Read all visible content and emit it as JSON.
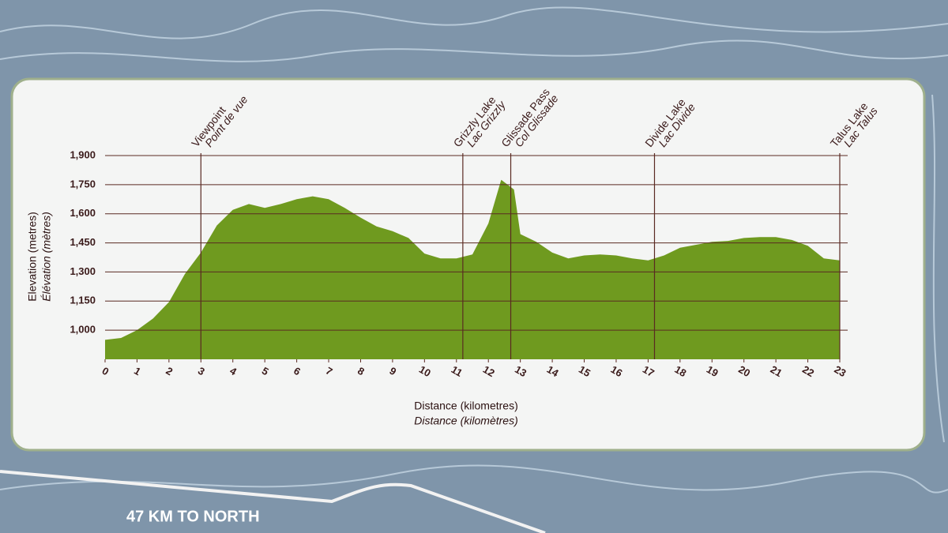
{
  "chart_data": {
    "type": "area",
    "x_label": "Distance (kilometres)",
    "x_label_fr": "Distance (kilomètres)",
    "y_label": "Elevation (metres)",
    "y_label_fr": "Élévation (mètres)",
    "x": [
      0,
      0.5,
      1,
      1.5,
      2,
      2.5,
      3,
      3.5,
      4,
      4.5,
      5,
      5.5,
      6,
      6.5,
      7,
      7.5,
      8,
      8.5,
      9,
      9.5,
      10,
      10.5,
      11,
      11.5,
      12,
      12.4,
      12.8,
      13,
      13.5,
      14,
      14.5,
      15,
      15.5,
      16,
      16.5,
      17,
      17.5,
      18,
      18.5,
      19,
      19.5,
      20,
      20.5,
      21,
      21.5,
      22,
      22.5,
      23
    ],
    "values": [
      950,
      960,
      1000,
      1060,
      1145,
      1290,
      1400,
      1540,
      1620,
      1650,
      1630,
      1650,
      1675,
      1690,
      1675,
      1630,
      1580,
      1535,
      1510,
      1475,
      1395,
      1370,
      1370,
      1390,
      1550,
      1775,
      1725,
      1495,
      1455,
      1400,
      1370,
      1385,
      1390,
      1385,
      1370,
      1360,
      1385,
      1425,
      1440,
      1455,
      1460,
      1475,
      1480,
      1480,
      1465,
      1435,
      1370,
      1360
    ],
    "color": "#6f9a1f",
    "xlim": [
      0,
      23
    ],
    "xticks": [
      0,
      1,
      2,
      3,
      4,
      5,
      6,
      7,
      8,
      9,
      10,
      11,
      12,
      13,
      14,
      15,
      16,
      17,
      18,
      19,
      20,
      21,
      22,
      23
    ],
    "ylim": [
      850,
      1900
    ],
    "yticks": [
      {
        "value": 1000,
        "label": "1,000"
      },
      {
        "value": 1150,
        "label": "1,150"
      },
      {
        "value": 1300,
        "label": "1,300"
      },
      {
        "value": 1450,
        "label": "1,450"
      },
      {
        "value": 1600,
        "label": "1,600"
      },
      {
        "value": 1750,
        "label": "1,750"
      },
      {
        "value": 1900,
        "label": "1,900"
      }
    ],
    "grid": true,
    "annotations": [
      {
        "x": 3,
        "label": "Viewpoint",
        "label_fr": "Point de vue"
      },
      {
        "x": 11.2,
        "label": "Grizzly Lake",
        "label_fr": "Lac Grizzly"
      },
      {
        "x": 12.7,
        "label": "Glissade Pass",
        "label_fr": "Col Glissade"
      },
      {
        "x": 17.2,
        "label": "Divide Lake",
        "label_fr": "Lac Divide"
      },
      {
        "x": 23,
        "label": "Talus Lake",
        "label_fr": "Lac Talus"
      }
    ],
    "sign_text": "47 KM TO NORTH"
  }
}
